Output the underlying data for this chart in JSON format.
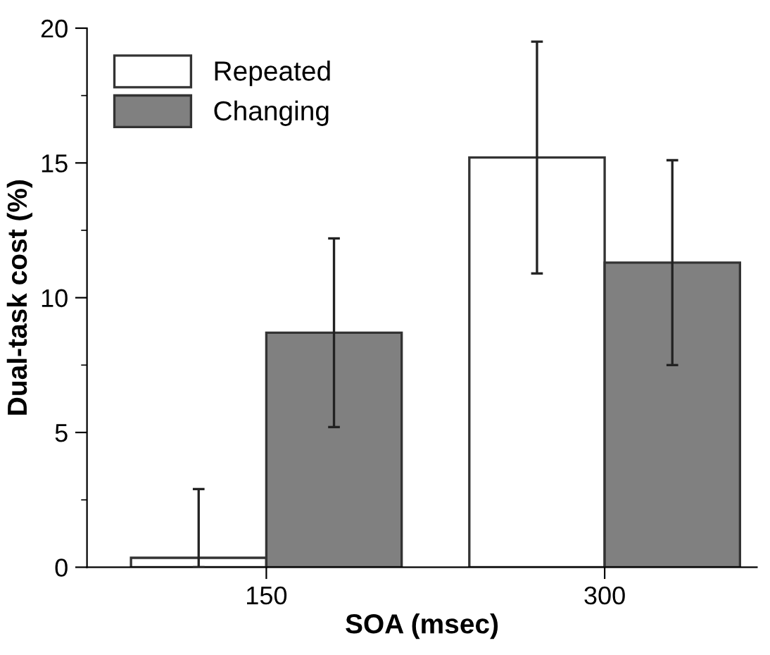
{
  "chart_data": {
    "type": "bar",
    "xlabel": "SOA (msec)",
    "ylabel": "Dual-task cost (%)",
    "categories": [
      "150",
      "300"
    ],
    "series": [
      {
        "name": "Repeated",
        "color": "#ffffff",
        "values": [
          0.35,
          15.2
        ],
        "errors": [
          [
            0,
            2.9
          ],
          4.3
        ]
      },
      {
        "name": "Changing",
        "color": "#808080",
        "values": [
          8.7,
          11.3
        ],
        "errors": [
          3.5,
          3.8
        ]
      }
    ],
    "ylim": [
      0,
      20
    ],
    "yticks": [
      0,
      5,
      10,
      15,
      20
    ],
    "grid": false,
    "legend": "top left"
  }
}
